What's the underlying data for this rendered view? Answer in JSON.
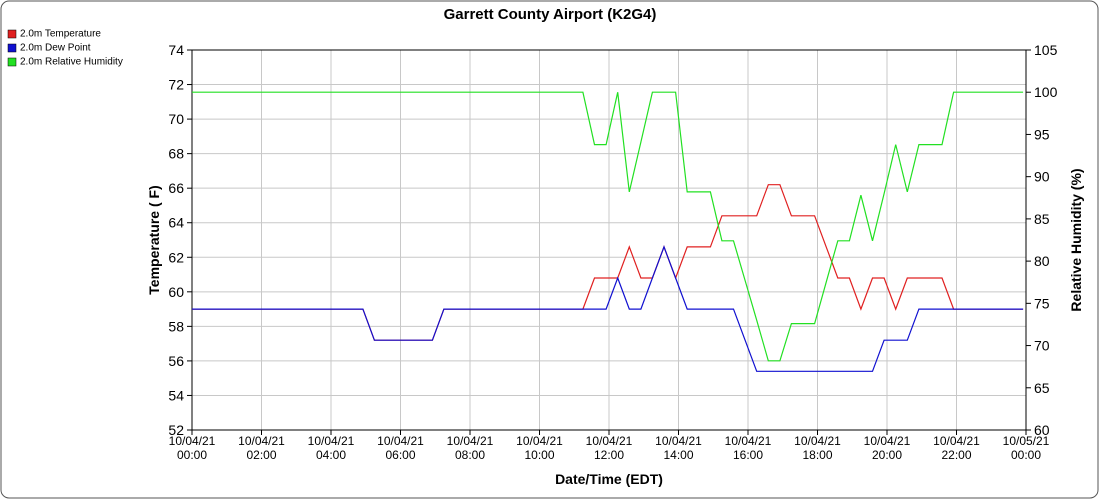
{
  "chart_data": {
    "type": "line",
    "title": "Garrett County Airport (K2G4)",
    "xlabel": "Date/Time (EDT)",
    "ylabel": "Temperature ( F)",
    "y2label": "Relative Humidity (%)",
    "x": [
      "2021-10-04T00:00",
      "2021-10-04T04:55",
      "2021-10-04T05:15",
      "2021-10-04T06:55",
      "2021-10-04T07:15",
      "2021-10-04T11:15",
      "2021-10-04T11:35",
      "2021-10-04T11:55",
      "2021-10-04T12:15",
      "2021-10-04T12:35",
      "2021-10-04T12:55",
      "2021-10-04T13:15",
      "2021-10-04T13:35",
      "2021-10-04T13:55",
      "2021-10-04T14:15",
      "2021-10-04T14:55",
      "2021-10-04T15:15",
      "2021-10-04T15:35",
      "2021-10-04T15:55",
      "2021-10-04T16:15",
      "2021-10-04T16:35",
      "2021-10-04T16:55",
      "2021-10-04T17:15",
      "2021-10-04T17:55",
      "2021-10-04T18:15",
      "2021-10-04T18:35",
      "2021-10-04T18:55",
      "2021-10-04T19:15",
      "2021-10-04T19:35",
      "2021-10-04T19:55",
      "2021-10-04T20:15",
      "2021-10-04T20:35",
      "2021-10-04T20:55",
      "2021-10-04T21:35",
      "2021-10-04T21:55",
      "2021-10-04T23:55"
    ],
    "series": [
      {
        "name": "2.0m Temperature",
        "color": "#e02020",
        "values": [
          59,
          59,
          57.2,
          57.2,
          59,
          59,
          60.8,
          60.8,
          60.8,
          62.6,
          60.8,
          60.8,
          62.6,
          60.8,
          62.6,
          62.6,
          64.4,
          64.4,
          64.4,
          64.4,
          66.2,
          66.2,
          64.4,
          64.4,
          62.6,
          60.8,
          60.8,
          59,
          60.8,
          60.8,
          59,
          60.8,
          60.8,
          60.8,
          59,
          59
        ]
      },
      {
        "name": "2.0m Dew Point",
        "color": "#1010d0",
        "values": [
          59,
          59,
          57.2,
          57.2,
          59,
          59,
          59,
          59,
          60.8,
          59,
          59,
          60.8,
          62.6,
          60.8,
          59,
          59,
          59,
          59,
          57.2,
          55.4,
          55.4,
          55.4,
          55.4,
          55.4,
          55.4,
          55.4,
          55.4,
          55.4,
          55.4,
          57.2,
          57.2,
          57.2,
          59,
          59,
          59,
          59
        ]
      },
      {
        "name": "2.0m Relative Humidity",
        "color": "#22e022",
        "axis": "y2",
        "values": [
          100,
          100,
          100,
          100,
          100,
          100,
          93.8,
          93.8,
          100,
          88.2,
          94.1,
          100,
          100,
          100,
          88.2,
          88.2,
          82.4,
          82.4,
          77.7,
          73,
          68.2,
          68.2,
          72.6,
          72.6,
          77.5,
          82.4,
          82.4,
          87.8,
          82.4,
          88,
          93.8,
          88.2,
          93.8,
          93.8,
          100,
          100
        ]
      }
    ],
    "xlim": [
      "2021-10-04T00:00",
      "2021-10-05T00:00"
    ],
    "xticks": [
      {
        "value": "2021-10-04T00:00",
        "label": [
          "10/04/21",
          "00:00"
        ]
      },
      {
        "value": "2021-10-04T02:00",
        "label": [
          "10/04/21",
          "02:00"
        ]
      },
      {
        "value": "2021-10-04T04:00",
        "label": [
          "10/04/21",
          "04:00"
        ]
      },
      {
        "value": "2021-10-04T06:00",
        "label": [
          "10/04/21",
          "06:00"
        ]
      },
      {
        "value": "2021-10-04T08:00",
        "label": [
          "10/04/21",
          "08:00"
        ]
      },
      {
        "value": "2021-10-04T10:00",
        "label": [
          "10/04/21",
          "10:00"
        ]
      },
      {
        "value": "2021-10-04T12:00",
        "label": [
          "10/04/21",
          "12:00"
        ]
      },
      {
        "value": "2021-10-04T14:00",
        "label": [
          "10/04/21",
          "14:00"
        ]
      },
      {
        "value": "2021-10-04T16:00",
        "label": [
          "10/04/21",
          "16:00"
        ]
      },
      {
        "value": "2021-10-04T18:00",
        "label": [
          "10/04/21",
          "18:00"
        ]
      },
      {
        "value": "2021-10-04T20:00",
        "label": [
          "10/04/21",
          "20:00"
        ]
      },
      {
        "value": "2021-10-04T22:00",
        "label": [
          "10/04/21",
          "22:00"
        ]
      },
      {
        "value": "2021-10-05T00:00",
        "label": [
          "10/05/21",
          "00:00"
        ]
      }
    ],
    "ylim": [
      52,
      74
    ],
    "yticks": [
      52,
      54,
      56,
      58,
      60,
      62,
      64,
      66,
      68,
      70,
      72,
      74
    ],
    "y2lim": [
      60,
      105
    ],
    "y2ticks": [
      60,
      65,
      70,
      75,
      80,
      85,
      90,
      95,
      100,
      105
    ],
    "grid": true,
    "legend": "top-left"
  }
}
